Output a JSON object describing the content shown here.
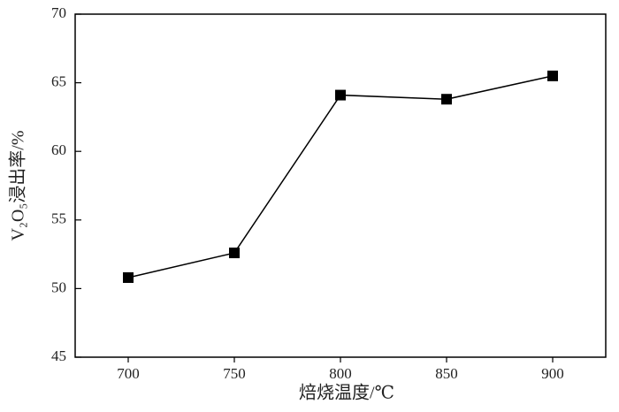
{
  "chart_data": {
    "type": "line",
    "x_label": "焙烧温度/℃",
    "y_label": "V₂O₅浸出率/%",
    "x": [
      700,
      750,
      800,
      850,
      900
    ],
    "series": [
      {
        "color": "#000000",
        "marker": "square",
        "values": [
          50.8,
          52.6,
          64.1,
          63.8,
          65.5
        ]
      }
    ],
    "xlim": [
      675,
      925
    ],
    "xticks": [
      700,
      750,
      800,
      850,
      900
    ],
    "ylim": [
      45,
      70
    ],
    "yticks": [
      45,
      50,
      55,
      60,
      65,
      70
    ],
    "grid": false
  }
}
